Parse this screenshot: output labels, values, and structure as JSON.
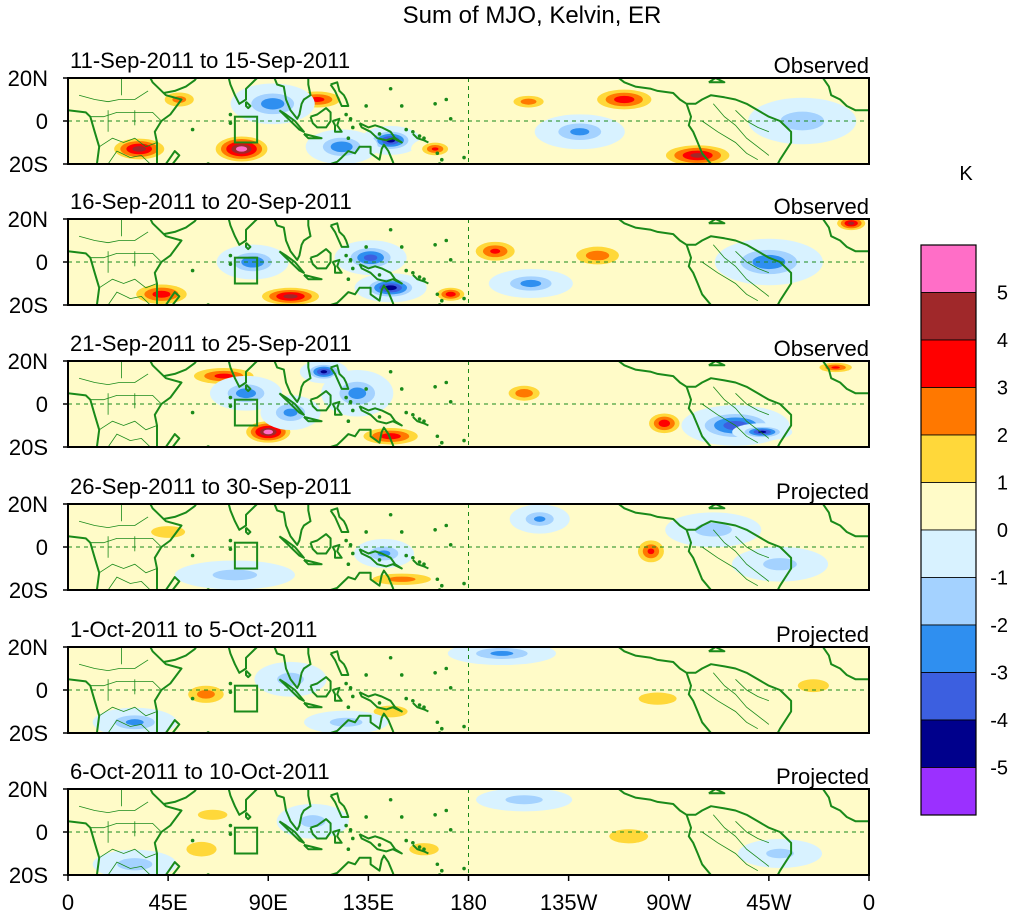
{
  "figure": {
    "title": "Sum of MJO, Kelvin, ER"
  },
  "chart_data": {
    "type": "heatmap",
    "title": "Sum of MJO, Kelvin, ER",
    "units": "K",
    "x_ticks": [
      "0",
      "45E",
      "90E",
      "135E",
      "180",
      "135W",
      "90W",
      "45W",
      "0"
    ],
    "x_range_deg": [
      0,
      360
    ],
    "y_ticks": [
      "20N",
      "0",
      "20S"
    ],
    "y_range_deg": [
      -20,
      20
    ],
    "colorbar": {
      "label": "K",
      "tick_labels": [
        "5",
        "4",
        "3",
        "2",
        "1",
        "0",
        "-1",
        "-2",
        "-3",
        "-4",
        "-5"
      ],
      "colors_top_to_bottom": [
        "#ff6ec7",
        "#a0282a",
        "#ff0000",
        "#ff7800",
        "#ffd83a",
        "#fffbc8",
        "#d8f2ff",
        "#a4d2ff",
        "#2f8ff0",
        "#3c5fe0",
        "#00008c",
        "#9b30ff"
      ]
    },
    "panels": [
      {
        "date_range": "11-Sep-2011 to 15-Sep-2011",
        "status": "Observed",
        "blobs": [
          {
            "lon": 32,
            "lat": -13,
            "rx": 14,
            "ry": 6,
            "v": 4.5
          },
          {
            "lon": 78,
            "lat": -13,
            "rx": 14,
            "ry": 7,
            "v": 5.3
          },
          {
            "lon": 112,
            "lat": 10,
            "rx": 14,
            "ry": 5,
            "v": 3.3
          },
          {
            "lon": 145,
            "lat": -9,
            "rx": 10,
            "ry": 5,
            "v": -4.4
          },
          {
            "lon": 165,
            "lat": -13,
            "rx": 8,
            "ry": 4,
            "v": 3.1
          },
          {
            "lon": 207,
            "lat": 9,
            "rx": 10,
            "ry": 4,
            "v": 2.5
          },
          {
            "lon": 250,
            "lat": 10,
            "rx": 16,
            "ry": 6,
            "v": 3.6
          },
          {
            "lon": 283,
            "lat": -16,
            "rx": 18,
            "ry": 6,
            "v": 4.2
          },
          {
            "lon": 92,
            "lat": 8,
            "rx": 14,
            "ry": 7,
            "v": -2.6
          },
          {
            "lon": 123,
            "lat": -12,
            "rx": 12,
            "ry": 6,
            "v": -2.8
          },
          {
            "lon": 230,
            "lat": -5,
            "rx": 15,
            "ry": 6,
            "v": -2.2
          },
          {
            "lon": 330,
            "lat": 0,
            "rx": 18,
            "ry": 8,
            "v": -1.6
          },
          {
            "lon": 50,
            "lat": 10,
            "rx": 10,
            "ry": 5,
            "v": 2.3
          }
        ]
      },
      {
        "date_range": "16-Sep-2011 to 20-Sep-2011",
        "status": "Observed",
        "blobs": [
          {
            "lon": 42,
            "lat": -15,
            "rx": 15,
            "ry": 6,
            "v": 3.5
          },
          {
            "lon": 100,
            "lat": -16,
            "rx": 16,
            "ry": 5,
            "v": 4.4
          },
          {
            "lon": 145,
            "lat": -12,
            "rx": 12,
            "ry": 5,
            "v": -4.6
          },
          {
            "lon": 172,
            "lat": -15,
            "rx": 8,
            "ry": 4,
            "v": 3.6
          },
          {
            "lon": 192,
            "lat": 5,
            "rx": 12,
            "ry": 6,
            "v": 3.1
          },
          {
            "lon": 238,
            "lat": 3,
            "rx": 14,
            "ry": 6,
            "v": 2.6
          },
          {
            "lon": 83,
            "lat": 0,
            "rx": 12,
            "ry": 6,
            "v": -2.9
          },
          {
            "lon": 136,
            "lat": 2,
            "rx": 12,
            "ry": 6,
            "v": -3.4
          },
          {
            "lon": 208,
            "lat": -10,
            "rx": 14,
            "ry": 5,
            "v": -2.4
          },
          {
            "lon": 315,
            "lat": 0,
            "rx": 18,
            "ry": 8,
            "v": -2.8
          },
          {
            "lon": 352,
            "lat": 18,
            "rx": 8,
            "ry": 4,
            "v": 4.2
          }
        ]
      },
      {
        "date_range": "21-Sep-2011 to 25-Sep-2011",
        "status": "Observed",
        "blobs": [
          {
            "lon": 70,
            "lat": 13,
            "rx": 18,
            "ry": 5,
            "v": 3.3
          },
          {
            "lon": 115,
            "lat": 15,
            "rx": 8,
            "ry": 4,
            "v": -4.3
          },
          {
            "lon": 90,
            "lat": -13,
            "rx": 12,
            "ry": 6,
            "v": 5.2
          },
          {
            "lon": 145,
            "lat": -15,
            "rx": 16,
            "ry": 5,
            "v": 3.6
          },
          {
            "lon": 205,
            "lat": 5,
            "rx": 10,
            "ry": 5,
            "v": 2.7
          },
          {
            "lon": 268,
            "lat": -9,
            "rx": 9,
            "ry": 6,
            "v": 3.6
          },
          {
            "lon": 300,
            "lat": -10,
            "rx": 18,
            "ry": 7,
            "v": -3.7
          },
          {
            "lon": 312,
            "lat": -13,
            "rx": 10,
            "ry": 3,
            "v": -4.3
          },
          {
            "lon": 80,
            "lat": 5,
            "rx": 12,
            "ry": 6,
            "v": -2.6
          },
          {
            "lon": 100,
            "lat": -4,
            "rx": 10,
            "ry": 6,
            "v": -2.3
          },
          {
            "lon": 130,
            "lat": 5,
            "rx": 12,
            "ry": 8,
            "v": -2.4
          },
          {
            "lon": 345,
            "lat": 17,
            "rx": 10,
            "ry": 3,
            "v": 3.1
          }
        ]
      },
      {
        "date_range": "26-Sep-2011 to 30-Sep-2011",
        "status": "Projected",
        "blobs": [
          {
            "lon": 262,
            "lat": -2,
            "rx": 8,
            "ry": 7,
            "v": 3.1
          },
          {
            "lon": 150,
            "lat": -15,
            "rx": 20,
            "ry": 4,
            "v": 2.3
          },
          {
            "lon": 142,
            "lat": -3,
            "rx": 10,
            "ry": 5,
            "v": -2.2
          },
          {
            "lon": 212,
            "lat": 13,
            "rx": 10,
            "ry": 5,
            "v": -2.1
          },
          {
            "lon": 290,
            "lat": 8,
            "rx": 16,
            "ry": 6,
            "v": -1.5
          },
          {
            "lon": 75,
            "lat": -13,
            "rx": 20,
            "ry": 5,
            "v": -1.4
          },
          {
            "lon": 45,
            "lat": 7,
            "rx": 14,
            "ry": 5,
            "v": 1.6
          },
          {
            "lon": 320,
            "lat": -8,
            "rx": 16,
            "ry": 6,
            "v": -1.3
          }
        ]
      },
      {
        "date_range": "1-Oct-2011 to 5-Oct-2011",
        "status": "Projected",
        "blobs": [
          {
            "lon": 62,
            "lat": -2,
            "rx": 12,
            "ry": 6,
            "v": 2.4
          },
          {
            "lon": 195,
            "lat": 17,
            "rx": 18,
            "ry": 4,
            "v": -2.2
          },
          {
            "lon": 145,
            "lat": -10,
            "rx": 14,
            "ry": 5,
            "v": 1.6
          },
          {
            "lon": 265,
            "lat": -4,
            "rx": 18,
            "ry": 6,
            "v": 1.3
          },
          {
            "lon": 100,
            "lat": 5,
            "rx": 12,
            "ry": 6,
            "v": -1.4
          },
          {
            "lon": 30,
            "lat": -15,
            "rx": 14,
            "ry": 5,
            "v": -2.2
          },
          {
            "lon": 335,
            "lat": 2,
            "rx": 14,
            "ry": 6,
            "v": 1.4
          },
          {
            "lon": 125,
            "lat": -15,
            "rx": 14,
            "ry": 4,
            "v": -1.5
          }
        ]
      },
      {
        "date_range": "6-Oct-2011 to 10-Oct-2011",
        "status": "Projected",
        "blobs": [
          {
            "lon": 60,
            "lat": -8,
            "rx": 12,
            "ry": 6,
            "v": 1.7
          },
          {
            "lon": 65,
            "lat": 8,
            "rx": 14,
            "ry": 5,
            "v": 1.3
          },
          {
            "lon": 252,
            "lat": -2,
            "rx": 16,
            "ry": 6,
            "v": 1.6
          },
          {
            "lon": 205,
            "lat": 15,
            "rx": 16,
            "ry": 4,
            "v": -1.5
          },
          {
            "lon": 160,
            "lat": -8,
            "rx": 14,
            "ry": 6,
            "v": 1.3
          },
          {
            "lon": 30,
            "lat": -15,
            "rx": 14,
            "ry": 5,
            "v": -1.7
          },
          {
            "lon": 110,
            "lat": 5,
            "rx": 12,
            "ry": 6,
            "v": -1.3
          },
          {
            "lon": 320,
            "lat": -10,
            "rx": 14,
            "ry": 5,
            "v": -1.2
          }
        ]
      }
    ]
  }
}
